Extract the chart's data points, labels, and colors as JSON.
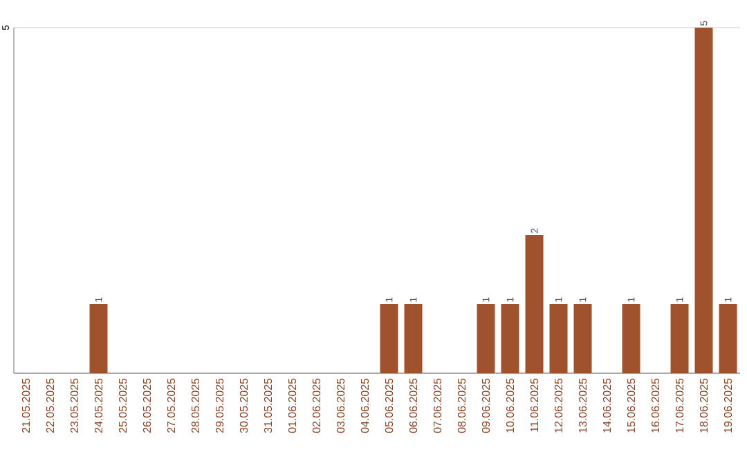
{
  "chart_data": {
    "type": "bar",
    "categories": [
      "21.05.2025",
      "22.05.2025",
      "23.05.2025",
      "24.05.2025",
      "25.05.2025",
      "26.05.2025",
      "27.05.2025",
      "28.05.2025",
      "29.05.2025",
      "30.05.2025",
      "31.05.2025",
      "01.06.2025",
      "02.06.2025",
      "03.06.2025",
      "04.06.2025",
      "05.06.2025",
      "06.06.2025",
      "07.06.2025",
      "08.06.2025",
      "09.06.2025",
      "10.06.2025",
      "11.06.2025",
      "12.06.2025",
      "13.06.2025",
      "14.06.2025",
      "15.06.2025",
      "16.06.2025",
      "17.06.2025",
      "18.06.2025",
      "19.06.2025"
    ],
    "values": [
      0,
      0,
      0,
      1,
      0,
      0,
      0,
      0,
      0,
      0,
      0,
      0,
      0,
      0,
      0,
      1,
      1,
      0,
      0,
      1,
      1,
      2,
      1,
      1,
      0,
      1,
      0,
      1,
      5,
      1
    ],
    "value_labels": [
      null,
      null,
      null,
      "1",
      null,
      null,
      null,
      null,
      null,
      null,
      null,
      null,
      null,
      null,
      null,
      "1",
      "1",
      null,
      null,
      "1",
      "1",
      "2",
      "1",
      "1",
      null,
      "1",
      null,
      "1",
      "5",
      "1"
    ],
    "color": "#a0522d",
    "ylim": [
      0,
      5
    ],
    "yticks": [
      {
        "value": 0,
        "label": null
      },
      5
    ],
    "grid": "y"
  }
}
